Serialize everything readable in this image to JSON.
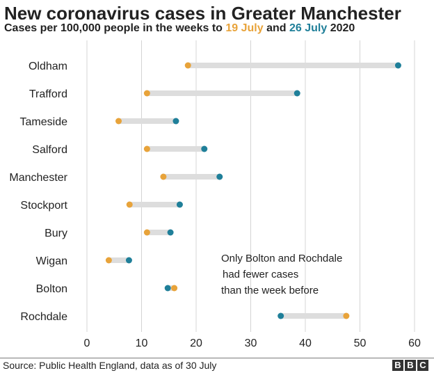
{
  "chart_data": {
    "type": "dumbbell",
    "title": "New coronavirus cases in Greater Manchester",
    "subtitle": {
      "prefix": "Cases per 100,000 people in the weeks to ",
      "series1_label": "19 July",
      "middle": " and ",
      "series2_label": "26 July",
      "suffix": " 2020"
    },
    "categories": [
      "Oldham",
      "Trafford",
      "Tameside",
      "Salford",
      "Manchester",
      "Stockport",
      "Bury",
      "Wigan",
      "Bolton",
      "Rochdale"
    ],
    "series": [
      {
        "name": "19 July",
        "color": "#E8A33A",
        "values": [
          18.5,
          11,
          5.8,
          11,
          14,
          7.8,
          11,
          4,
          16,
          47.5
        ]
      },
      {
        "name": "26 July",
        "color": "#1F7F99",
        "values": [
          57,
          38.5,
          16.3,
          21.5,
          24.3,
          17,
          15.3,
          7.7,
          14.8,
          35.5
        ]
      }
    ],
    "xlim": [
      0,
      60
    ],
    "xticks": [
      "0",
      "10",
      "20",
      "30",
      "40",
      "50",
      "60"
    ],
    "grid": true,
    "connector_color": "#DDDDDD",
    "annotation": [
      "Only Bolton and Rochdale",
      "had fewer cases",
      "than the week before"
    ]
  },
  "footer": {
    "source": "Source: Public Health England, data as of 30 July",
    "logo_letters": [
      "B",
      "B",
      "C"
    ]
  }
}
